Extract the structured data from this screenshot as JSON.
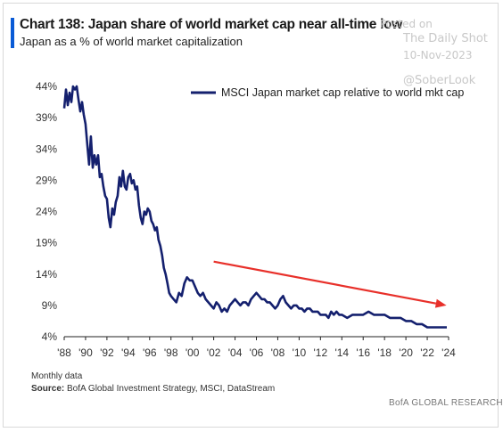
{
  "header": {
    "title": "Chart 138: Japan share of world market cap near all-time low",
    "subtitle": "Japan as a % of world market capitalization"
  },
  "watermark": {
    "posted": "Posted on",
    "source": "The Daily Shot",
    "date": "10-Nov-2023",
    "handle": "@SoberLook"
  },
  "footer": {
    "note": "Monthly data",
    "source_label": "Source:",
    "source_text": "BofA Global Investment Strategy, MSCI, DataStream",
    "credit": "BofA GLOBAL RESEARCH"
  },
  "colors": {
    "series": "#14206e",
    "trend_arrow": "#e8302a",
    "title_accent": "#0a5bd6"
  },
  "chart_data": {
    "type": "line",
    "title": "Chart 138: Japan share of world market cap near all-time low",
    "subtitle": "Japan as a % of world market capitalization",
    "ylim": [
      4,
      44
    ],
    "y_ticks": [
      44,
      39,
      34,
      29,
      24,
      19,
      14,
      9,
      4
    ],
    "y_tick_labels": [
      "44%",
      "39%",
      "34%",
      "29%",
      "24%",
      "19%",
      "14%",
      "9%",
      "4%"
    ],
    "xlim": [
      1988,
      2024
    ],
    "x_ticks": [
      1988,
      1990,
      1992,
      1994,
      1996,
      1998,
      2000,
      2002,
      2004,
      2006,
      2008,
      2010,
      2012,
      2014,
      2016,
      2018,
      2020,
      2022,
      2024
    ],
    "x_tick_labels": [
      "'88",
      "'90",
      "'92",
      "'94",
      "'96",
      "'98",
      "'00",
      "'02",
      "'04",
      "'06",
      "'08",
      "'10",
      "'12",
      "'14",
      "'16",
      "'18",
      "'20",
      "'22",
      "'24"
    ],
    "grid": false,
    "legend_position": "top-right",
    "series": [
      {
        "name": "MSCI Japan market cap relative to world mkt cap",
        "x": [
          1988.0,
          1988.17,
          1988.33,
          1988.5,
          1988.67,
          1988.83,
          1989.0,
          1989.17,
          1989.33,
          1989.5,
          1989.67,
          1989.83,
          1990.0,
          1990.17,
          1990.33,
          1990.5,
          1990.67,
          1990.83,
          1991.0,
          1991.17,
          1991.33,
          1991.5,
          1991.67,
          1991.83,
          1992.0,
          1992.17,
          1992.33,
          1992.5,
          1992.67,
          1992.83,
          1993.0,
          1993.17,
          1993.33,
          1993.5,
          1993.67,
          1993.83,
          1994.0,
          1994.17,
          1994.33,
          1994.5,
          1994.67,
          1994.83,
          1995.0,
          1995.17,
          1995.33,
          1995.5,
          1995.67,
          1995.83,
          1996.0,
          1996.17,
          1996.33,
          1996.5,
          1996.67,
          1996.83,
          1997.0,
          1997.17,
          1997.33,
          1997.5,
          1997.67,
          1997.83,
          1998.0,
          1998.25,
          1998.5,
          1998.75,
          1999.0,
          1999.25,
          1999.5,
          1999.75,
          2000.0,
          2000.25,
          2000.5,
          2000.75,
          2001.0,
          2001.25,
          2001.5,
          2001.75,
          2002.0,
          2002.25,
          2002.5,
          2002.75,
          2003.0,
          2003.25,
          2003.5,
          2003.75,
          2004.0,
          2004.25,
          2004.5,
          2004.75,
          2005.0,
          2005.25,
          2005.5,
          2005.75,
          2006.0,
          2006.25,
          2006.5,
          2006.75,
          2007.0,
          2007.25,
          2007.5,
          2007.75,
          2008.0,
          2008.25,
          2008.5,
          2008.75,
          2009.0,
          2009.25,
          2009.5,
          2009.75,
          2010.0,
          2010.25,
          2010.5,
          2010.75,
          2011.0,
          2011.25,
          2011.5,
          2011.75,
          2012.0,
          2012.25,
          2012.5,
          2012.75,
          2013.0,
          2013.25,
          2013.5,
          2013.75,
          2014.0,
          2014.5,
          2015.0,
          2015.5,
          2016.0,
          2016.5,
          2017.0,
          2017.5,
          2018.0,
          2018.5,
          2019.0,
          2019.5,
          2020.0,
          2020.5,
          2021.0,
          2021.5,
          2022.0,
          2022.5,
          2023.0,
          2023.5,
          2023.83
        ],
        "values": [
          40.5,
          43.5,
          41.0,
          43.0,
          41.5,
          44.0,
          43.5,
          44.0,
          42.0,
          40.0,
          41.5,
          39.5,
          38.0,
          34.5,
          31.5,
          36.0,
          31.0,
          33.0,
          31.5,
          33.0,
          29.5,
          30.0,
          28.0,
          26.5,
          26.0,
          23.0,
          21.5,
          24.5,
          23.5,
          25.5,
          26.5,
          29.5,
          28.0,
          30.5,
          28.0,
          27.5,
          29.5,
          30.0,
          28.5,
          29.0,
          27.5,
          28.0,
          25.0,
          23.0,
          22.0,
          24.0,
          23.5,
          24.5,
          24.0,
          22.5,
          22.0,
          21.0,
          21.5,
          19.5,
          18.5,
          17.0,
          15.0,
          14.0,
          12.5,
          11.0,
          10.5,
          10.0,
          9.5,
          11.0,
          10.5,
          12.5,
          13.5,
          13.0,
          13.0,
          12.0,
          11.0,
          10.5,
          11.0,
          10.0,
          9.5,
          9.0,
          8.5,
          9.5,
          9.0,
          8.0,
          8.5,
          8.0,
          9.0,
          9.5,
          10.0,
          9.5,
          9.0,
          9.5,
          9.5,
          9.0,
          10.0,
          10.5,
          11.0,
          10.5,
          10.0,
          10.0,
          9.5,
          9.5,
          9.0,
          8.5,
          9.0,
          10.0,
          10.5,
          9.5,
          9.0,
          8.5,
          9.0,
          9.0,
          8.5,
          8.5,
          8.0,
          8.5,
          8.5,
          8.0,
          8.0,
          8.0,
          7.5,
          7.5,
          7.5,
          7.0,
          8.0,
          7.5,
          8.0,
          7.5,
          7.5,
          7.0,
          7.5,
          7.5,
          7.5,
          8.0,
          7.5,
          7.5,
          7.5,
          7.0,
          7.0,
          7.0,
          6.5,
          6.5,
          6.0,
          6.0,
          5.5,
          5.5,
          5.5,
          5.5,
          5.5
        ]
      }
    ],
    "annotations": [
      {
        "type": "trend-arrow",
        "from": [
          2002,
          16.0
        ],
        "to": [
          2023.8,
          9.0
        ]
      }
    ]
  }
}
